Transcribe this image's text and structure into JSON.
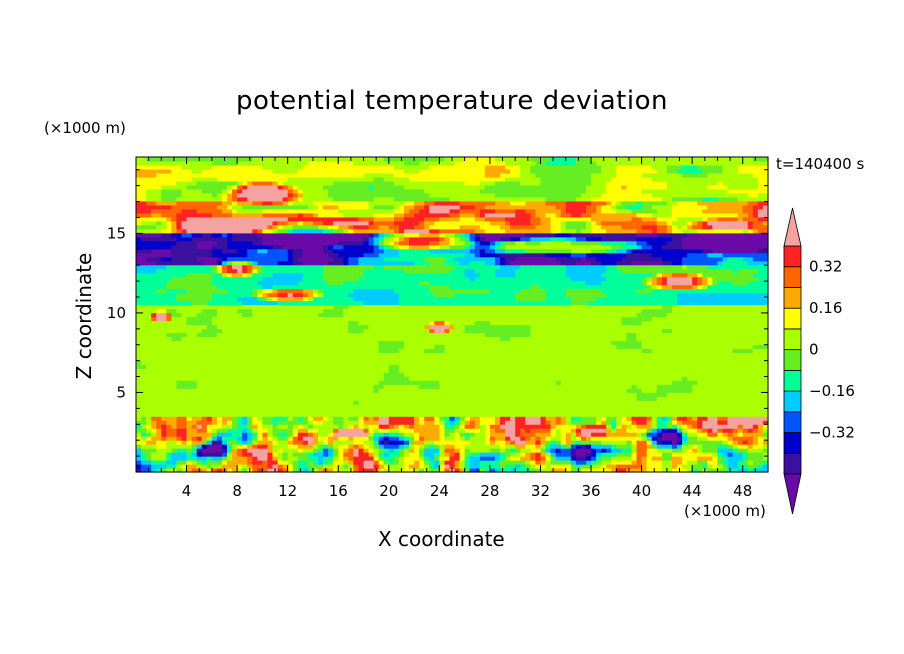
{
  "chart_data": {
    "type": "heatmap",
    "title": "potential temperature deviation",
    "xlabel": "X coordinate",
    "ylabel": "Z coordinate",
    "x_unit": "(×1000 m)",
    "y_unit": "(×1000 m)",
    "time_label": "t=140400 s",
    "xlim": [
      0,
      50
    ],
    "ylim": [
      0,
      19.8
    ],
    "x_ticks": [
      4,
      8,
      12,
      16,
      20,
      24,
      28,
      32,
      36,
      40,
      44,
      48
    ],
    "y_ticks": [
      5,
      10,
      15
    ],
    "colorbar": {
      "levels": [
        -0.48,
        -0.4,
        -0.32,
        -0.24,
        -0.16,
        -0.08,
        0,
        0.08,
        0.16,
        0.24,
        0.32,
        0.4,
        0.48
      ],
      "labels": [
        "0.32",
        "0.16",
        "0",
        "-0.16",
        "-0.32"
      ],
      "label_values": [
        0.32,
        0.16,
        0,
        -0.16,
        -0.32
      ],
      "colors": [
        "#6a0aa8",
        "#3a10a0",
        "#0000cc",
        "#0055ff",
        "#00ccff",
        "#00ff99",
        "#66ee22",
        "#aaff00",
        "#ffff00",
        "#ffaa00",
        "#ff6600",
        "#ff2222",
        "#f4a3a0"
      ],
      "extend": "both"
    },
    "layers": [
      {
        "zmin": 17.0,
        "zmax": 19.8,
        "mean": 0.04
      },
      {
        "zmin": 15.0,
        "zmax": 17.0,
        "mean": 0.2
      },
      {
        "zmin": 13.0,
        "zmax": 15.0,
        "mean": -0.4
      },
      {
        "zmin": 10.5,
        "zmax": 13.0,
        "mean": -0.12
      },
      {
        "zmin": 3.5,
        "zmax": 10.5,
        "mean": 0.03
      },
      {
        "zmin": 0.0,
        "zmax": 3.5,
        "mean": 0.1
      }
    ]
  },
  "icons": {
    "colorbar_top_arrow": "triangle-up",
    "colorbar_bottom_arrow": "triangle-down"
  }
}
